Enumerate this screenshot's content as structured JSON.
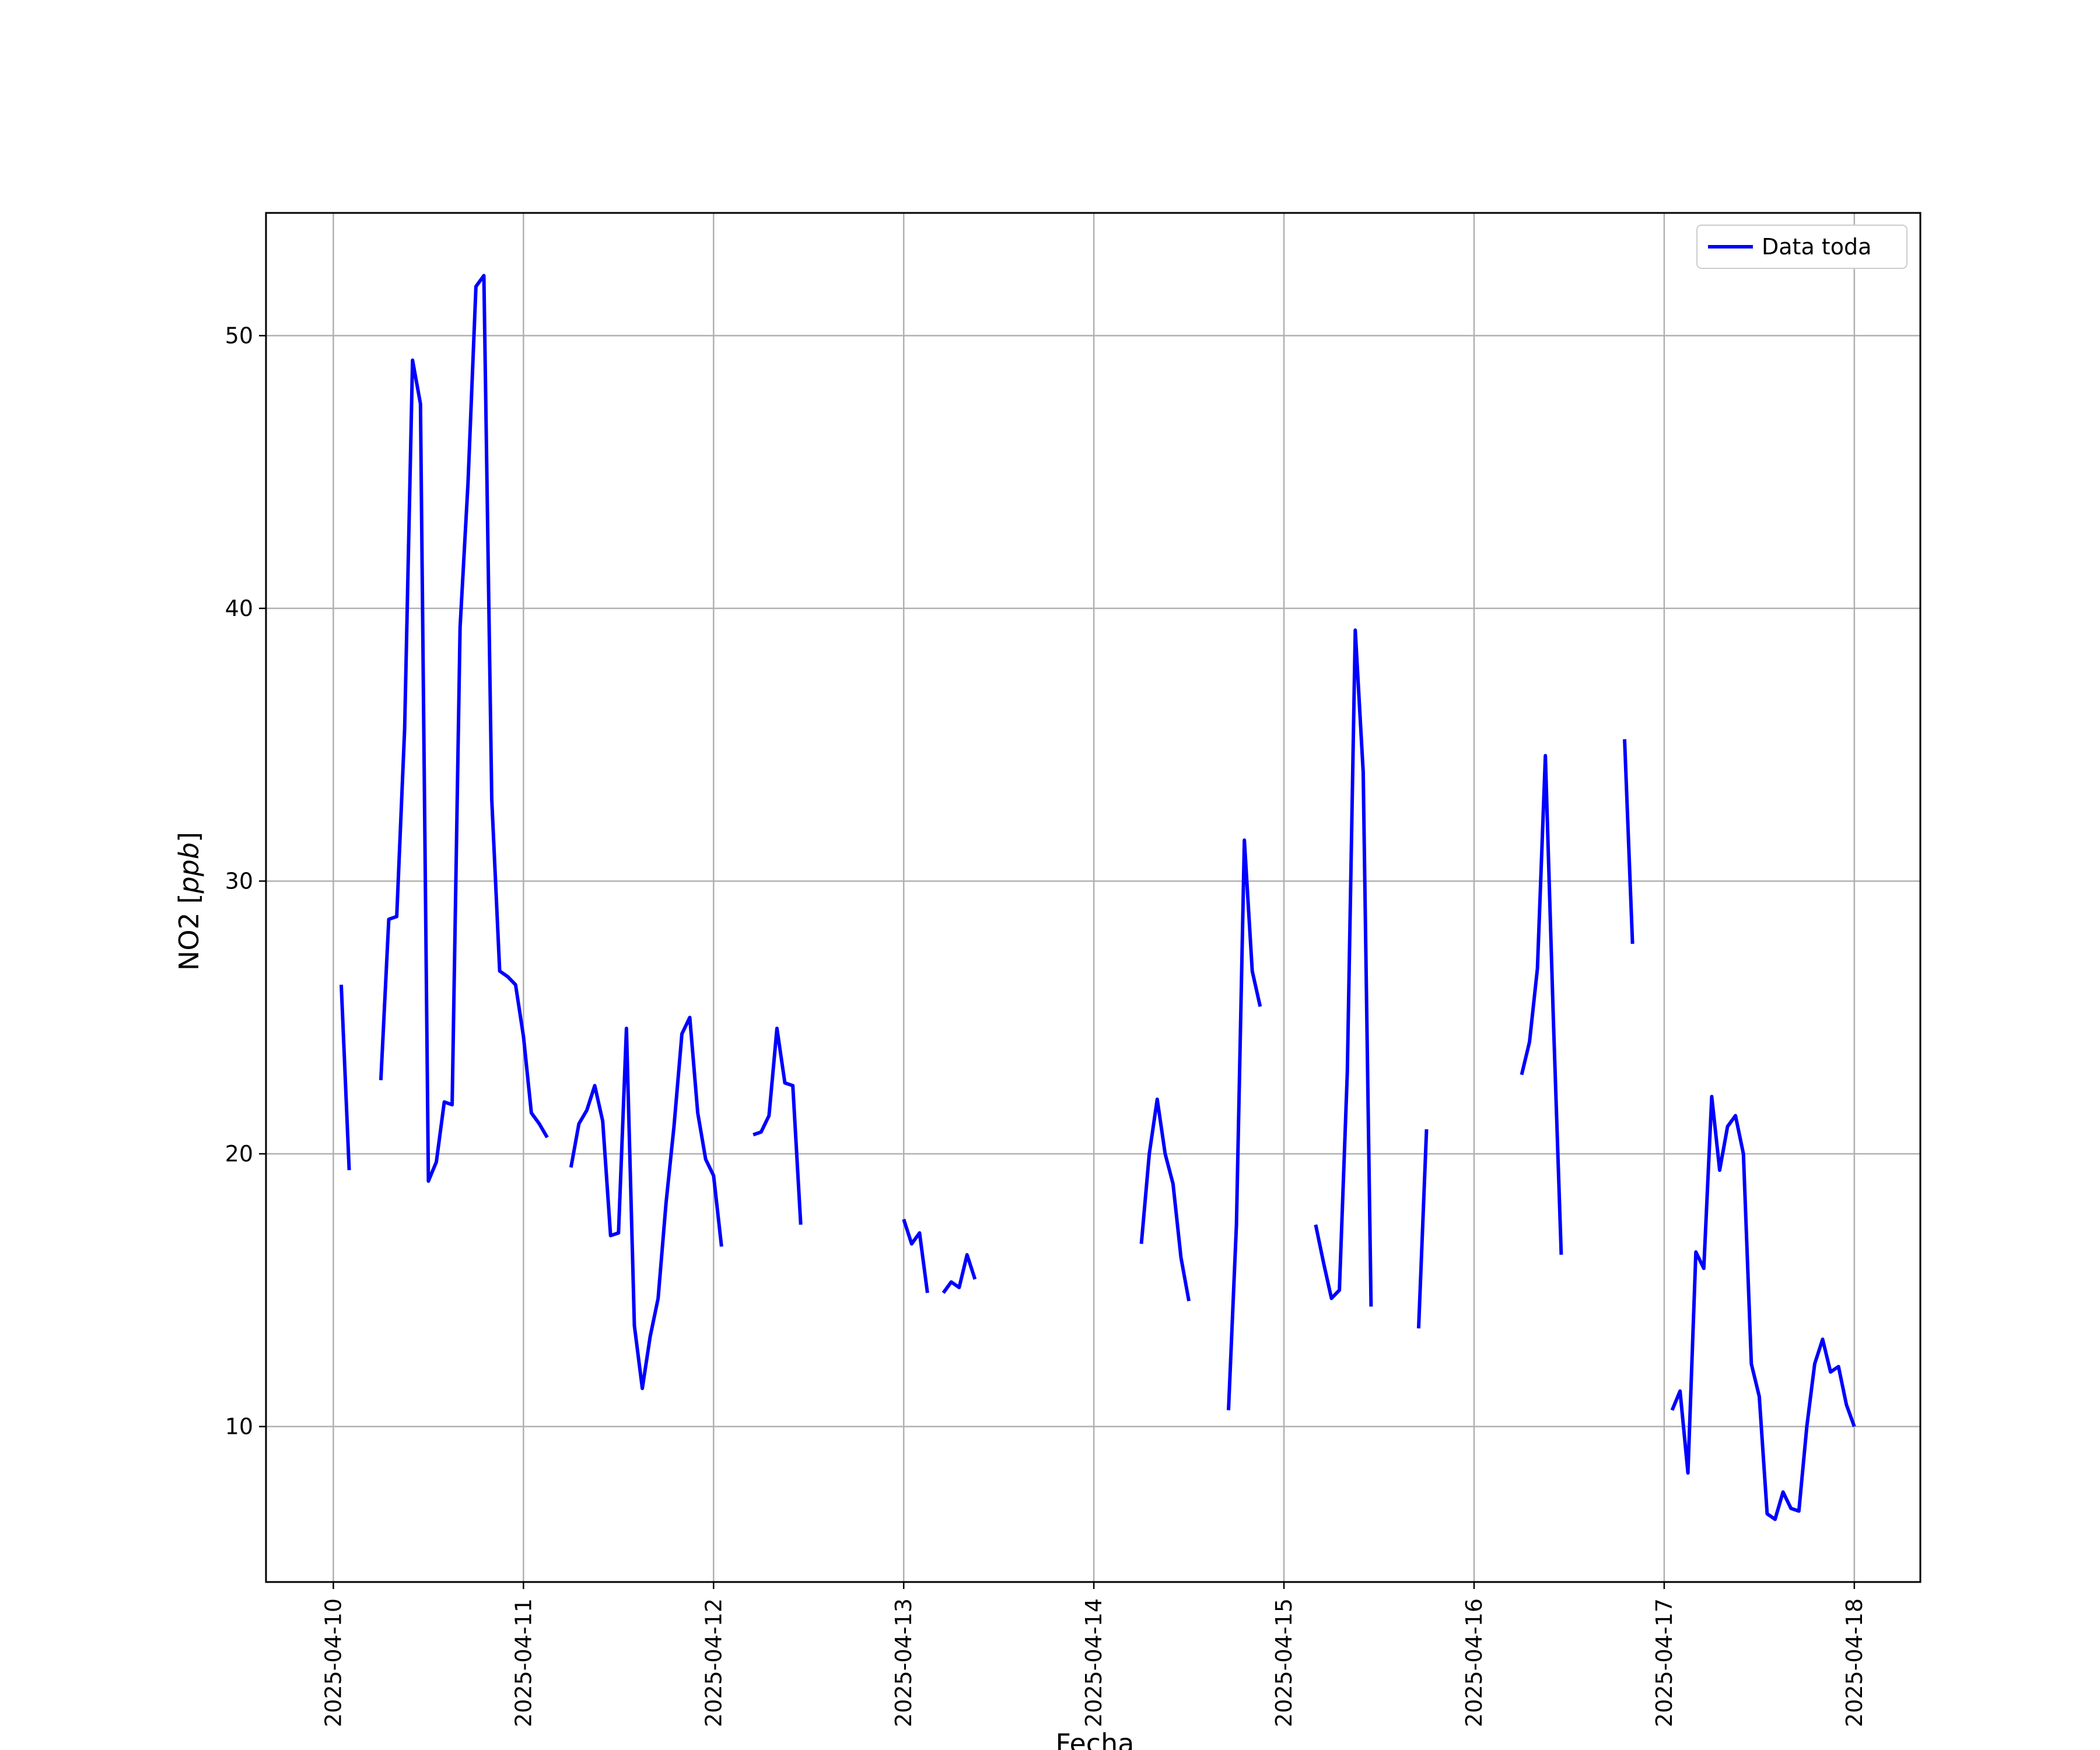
{
  "chart_data": {
    "type": "line",
    "xlabel": "Fecha",
    "ylabel": "NO2 [ppb]",
    "ylabel_parts": {
      "prefix": "NO2 [",
      "unit": "ppb",
      "suffix": "]"
    },
    "x_range": [
      "2025-04-09T15:30",
      "2025-04-18T08:20"
    ],
    "ylim": [
      4.3,
      54.5
    ],
    "x_ticks": [
      "2025-04-10",
      "2025-04-11",
      "2025-04-12",
      "2025-04-13",
      "2025-04-14",
      "2025-04-15",
      "2025-04-16",
      "2025-04-17",
      "2025-04-18"
    ],
    "y_ticks": [
      10,
      20,
      30,
      40,
      50
    ],
    "grid": true,
    "legend_position": "top-right",
    "series": [
      {
        "name": "Data toda",
        "color": "#0000ff",
        "segments": [
          [
            [
              "2025-04-10T01:00",
              26.2
            ],
            [
              "2025-04-10T02:00",
              19.4
            ]
          ],
          [
            [
              "2025-04-10T06:00",
              22.7
            ],
            [
              "2025-04-10T07:00",
              28.6
            ],
            [
              "2025-04-10T08:00",
              28.7
            ],
            [
              "2025-04-10T09:00",
              35.6
            ],
            [
              "2025-04-10T10:00",
              49.1
            ],
            [
              "2025-04-10T11:00",
              47.5
            ],
            [
              "2025-04-10T12:00",
              19.0
            ],
            [
              "2025-04-10T13:00",
              19.7
            ],
            [
              "2025-04-10T14:00",
              21.9
            ],
            [
              "2025-04-10T15:00",
              21.8
            ],
            [
              "2025-04-10T16:00",
              39.3
            ],
            [
              "2025-04-10T17:00",
              44.6
            ],
            [
              "2025-04-10T18:00",
              51.8
            ],
            [
              "2025-04-10T19:00",
              52.2
            ],
            [
              "2025-04-10T20:00",
              33.0
            ],
            [
              "2025-04-10T21:00",
              26.7
            ],
            [
              "2025-04-10T22:00",
              26.5
            ],
            [
              "2025-04-10T23:00",
              26.2
            ],
            [
              "2025-04-11T00:00",
              24.3
            ],
            [
              "2025-04-11T01:00",
              21.5
            ],
            [
              "2025-04-11T02:00",
              21.1
            ],
            [
              "2025-04-11T03:00",
              20.6
            ]
          ],
          [
            [
              "2025-04-11T06:00",
              19.5
            ],
            [
              "2025-04-11T07:00",
              21.1
            ],
            [
              "2025-04-11T08:00",
              21.6
            ],
            [
              "2025-04-11T09:00",
              22.5
            ],
            [
              "2025-04-11T10:00",
              21.2
            ],
            [
              "2025-04-11T11:00",
              17.0
            ],
            [
              "2025-04-11T12:00",
              17.1
            ],
            [
              "2025-04-11T13:00",
              24.6
            ],
            [
              "2025-04-11T14:00",
              13.7
            ],
            [
              "2025-04-11T15:00",
              11.4
            ],
            [
              "2025-04-11T16:00",
              13.3
            ],
            [
              "2025-04-11T17:00",
              14.7
            ],
            [
              "2025-04-11T18:00",
              18.2
            ],
            [
              "2025-04-11T19:00",
              21.0
            ],
            [
              "2025-04-11T20:00",
              24.4
            ],
            [
              "2025-04-11T21:00",
              25.0
            ],
            [
              "2025-04-11T22:00",
              21.5
            ],
            [
              "2025-04-11T23:00",
              19.8
            ],
            [
              "2025-04-12T00:00",
              19.2
            ],
            [
              "2025-04-12T01:00",
              16.6
            ]
          ],
          [
            [
              "2025-04-12T05:00",
              20.7
            ],
            [
              "2025-04-12T06:00",
              20.8
            ],
            [
              "2025-04-12T07:00",
              21.4
            ],
            [
              "2025-04-12T08:00",
              24.6
            ],
            [
              "2025-04-12T09:00",
              22.6
            ],
            [
              "2025-04-12T10:00",
              22.5
            ],
            [
              "2025-04-12T11:00",
              17.4
            ]
          ],
          [
            [
              "2025-04-13T00:00",
              17.6
            ],
            [
              "2025-04-13T01:00",
              16.7
            ],
            [
              "2025-04-13T02:00",
              17.1
            ],
            [
              "2025-04-13T03:00",
              14.9
            ]
          ],
          [
            [
              "2025-04-13T05:00",
              14.9
            ],
            [
              "2025-04-13T06:00",
              15.3
            ],
            [
              "2025-04-13T07:00",
              15.1
            ],
            [
              "2025-04-13T08:00",
              16.3
            ],
            [
              "2025-04-13T09:00",
              15.4
            ]
          ],
          [
            [
              "2025-04-14T06:00",
              16.7
            ],
            [
              "2025-04-14T07:00",
              20.0
            ],
            [
              "2025-04-14T08:00",
              22.0
            ],
            [
              "2025-04-14T09:00",
              20.0
            ],
            [
              "2025-04-14T10:00",
              18.9
            ],
            [
              "2025-04-14T11:00",
              16.2
            ],
            [
              "2025-04-14T12:00",
              14.6
            ]
          ],
          [
            [
              "2025-04-14T17:00",
              10.6
            ],
            [
              "2025-04-14T18:00",
              17.4
            ],
            [
              "2025-04-14T19:00",
              31.5
            ],
            [
              "2025-04-14T20:00",
              26.7
            ],
            [
              "2025-04-14T21:00",
              25.4
            ]
          ],
          [
            [
              "2025-04-15T04:00",
              17.4
            ],
            [
              "2025-04-15T05:00",
              16.0
            ],
            [
              "2025-04-15T06:00",
              14.7
            ],
            [
              "2025-04-15T07:00",
              15.0
            ],
            [
              "2025-04-15T08:00",
              23.0
            ],
            [
              "2025-04-15T09:00",
              39.2
            ],
            [
              "2025-04-15T10:00",
              34.0
            ],
            [
              "2025-04-15T11:00",
              14.4
            ]
          ],
          [
            [
              "2025-04-15T17:00",
              13.6
            ],
            [
              "2025-04-15T18:00",
              20.9
            ]
          ],
          [
            [
              "2025-04-16T06:00",
              22.9
            ],
            [
              "2025-04-16T07:00",
              24.1
            ],
            [
              "2025-04-16T08:00",
              26.8
            ],
            [
              "2025-04-16T09:00",
              34.6
            ],
            [
              "2025-04-16T10:00",
              25.0
            ],
            [
              "2025-04-16T11:00",
              16.3
            ]
          ],
          [
            [
              "2025-04-16T19:00",
              35.2
            ],
            [
              "2025-04-16T20:00",
              27.7
            ]
          ],
          [
            [
              "2025-04-17T01:00",
              10.6
            ],
            [
              "2025-04-17T02:00",
              11.3
            ],
            [
              "2025-04-17T03:00",
              8.3
            ],
            [
              "2025-04-17T04:00",
              16.4
            ],
            [
              "2025-04-17T05:00",
              15.8
            ],
            [
              "2025-04-17T06:00",
              22.1
            ],
            [
              "2025-04-17T07:00",
              19.4
            ],
            [
              "2025-04-17T08:00",
              21.0
            ],
            [
              "2025-04-17T09:00",
              21.4
            ],
            [
              "2025-04-17T10:00",
              20.0
            ],
            [
              "2025-04-17T11:00",
              12.3
            ],
            [
              "2025-04-17T12:00",
              11.1
            ],
            [
              "2025-04-17T13:00",
              6.8
            ],
            [
              "2025-04-17T14:00",
              6.6
            ],
            [
              "2025-04-17T15:00",
              7.6
            ],
            [
              "2025-04-17T16:00",
              7.0
            ],
            [
              "2025-04-17T17:00",
              6.9
            ],
            [
              "2025-04-17T18:00",
              10.0
            ],
            [
              "2025-04-17T19:00",
              12.3
            ],
            [
              "2025-04-17T20:00",
              13.2
            ],
            [
              "2025-04-17T21:00",
              12.0
            ],
            [
              "2025-04-17T22:00",
              12.2
            ],
            [
              "2025-04-17T23:00",
              10.8
            ],
            [
              "2025-04-18T00:00",
              10.0
            ]
          ]
        ]
      }
    ]
  }
}
